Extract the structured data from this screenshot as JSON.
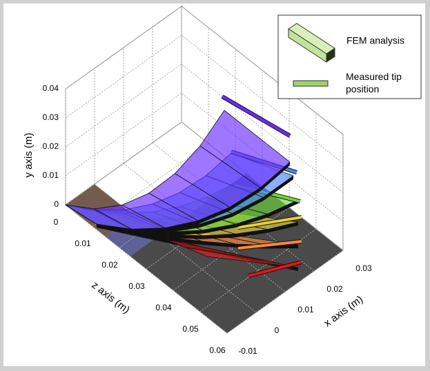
{
  "chart_data": {
    "type": "surface3d",
    "xlabel": "x axis (m)",
    "ylabel": "y axis (m)",
    "zlabel": "z axis (m)",
    "xlim": [
      -0.01,
      0.03
    ],
    "xticks": [
      -0.01,
      0,
      0.01,
      0.02,
      0.03
    ],
    "ylim": [
      0,
      0.04
    ],
    "yticks": [
      0,
      0.01,
      0.02,
      0.03,
      0.04
    ],
    "zlim": [
      0,
      0.06
    ],
    "zticks": [
      0,
      0.01,
      0.02,
      0.03,
      0.04,
      0.05,
      0.06
    ],
    "grid": true,
    "legend": [
      "FEM analysis",
      "Measured tip position"
    ]
  }
}
